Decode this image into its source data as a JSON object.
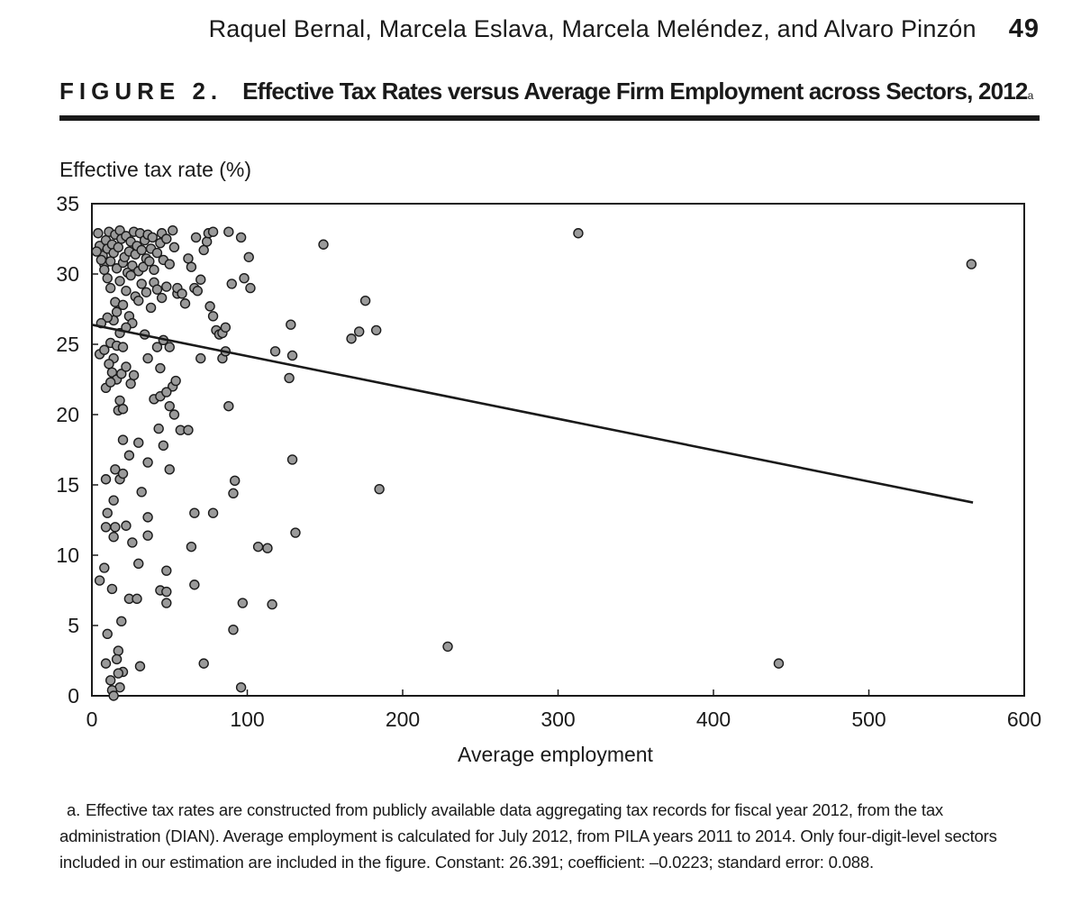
{
  "header": {
    "authors": "Raquel Bernal, Marcela Eslava, Marcela Meléndez, and Alvaro Pinzón",
    "page_number": "49"
  },
  "figure": {
    "label": "FIGURE 2.",
    "title": "Effective Tax Rates versus Average Firm Employment across Sectors, 2012",
    "title_note_marker": "a"
  },
  "footnote": {
    "marker": "a.",
    "text": "Effective tax rates are constructed from publicly available data aggregating tax records for fiscal year 2012, from the tax administration (DIAN). Average employment is calculated for July 2012, from PILA years 2011 to 2014. Only four-digit-level sectors included in our estimation are included in the figure. Constant: 26.391; coefficient: –0.0223; standard error: 0.088."
  },
  "colors": {
    "axis": "#1a1a1a",
    "marker_fill": "#9a9a9a",
    "marker_stroke": "#1a1a1a",
    "fit_line": "#1a1a1a"
  },
  "chart_data": {
    "type": "scatter",
    "title": "Effective Tax Rates versus Average Firm Employment across Sectors, 2012",
    "xlabel": "Average employment",
    "ylabel": "Effective tax rate (%)",
    "xlim": [
      0,
      600
    ],
    "ylim": [
      0,
      35
    ],
    "xticks": [
      0,
      100,
      200,
      300,
      400,
      500,
      600
    ],
    "yticks": [
      0,
      5,
      10,
      15,
      20,
      25,
      30,
      35
    ],
    "grid": false,
    "fit_line": {
      "constant": 26.391,
      "coefficient": -0.0223,
      "x_range": [
        0,
        567
      ]
    },
    "points": [
      [
        4,
        32.9
      ],
      [
        5,
        32.0
      ],
      [
        7,
        31.3
      ],
      [
        8,
        30.7
      ],
      [
        9,
        32.4
      ],
      [
        10,
        31.8
      ],
      [
        11,
        33.0
      ],
      [
        12,
        30.9
      ],
      [
        13,
        32.1
      ],
      [
        14,
        31.5
      ],
      [
        15,
        32.8
      ],
      [
        16,
        30.4
      ],
      [
        17,
        31.9
      ],
      [
        18,
        33.1
      ],
      [
        19,
        32.5
      ],
      [
        20,
        30.8
      ],
      [
        21,
        31.2
      ],
      [
        22,
        32.7
      ],
      [
        23,
        30.1
      ],
      [
        24,
        31.6
      ],
      [
        25,
        32.3
      ],
      [
        26,
        30.6
      ],
      [
        27,
        33.0
      ],
      [
        28,
        31.4
      ],
      [
        29,
        32.0
      ],
      [
        30,
        30.2
      ],
      [
        31,
        32.9
      ],
      [
        32,
        31.7
      ],
      [
        33,
        30.5
      ],
      [
        34,
        32.4
      ],
      [
        35,
        31.1
      ],
      [
        36,
        32.8
      ],
      [
        37,
        30.9
      ],
      [
        38,
        31.8
      ],
      [
        39,
        32.6
      ],
      [
        40,
        30.3
      ],
      [
        42,
        31.5
      ],
      [
        44,
        32.2
      ],
      [
        45,
        32.9
      ],
      [
        46,
        31.0
      ],
      [
        48,
        32.5
      ],
      [
        50,
        30.7
      ],
      [
        52,
        33.1
      ],
      [
        53,
        31.9
      ],
      [
        18,
        29.5
      ],
      [
        22,
        28.8
      ],
      [
        25,
        29.9
      ],
      [
        28,
        28.4
      ],
      [
        32,
        29.3
      ],
      [
        15,
        28.0
      ],
      [
        12,
        29.0
      ],
      [
        10,
        29.7
      ],
      [
        8,
        30.3
      ],
      [
        6,
        31.0
      ],
      [
        3,
        31.6
      ],
      [
        35,
        28.7
      ],
      [
        40,
        29.4
      ],
      [
        42,
        28.9
      ],
      [
        45,
        28.3
      ],
      [
        48,
        29.1
      ],
      [
        55,
        28.6
      ],
      [
        30,
        28.1
      ],
      [
        38,
        27.6
      ],
      [
        20,
        27.8
      ],
      [
        16,
        27.3
      ],
      [
        24,
        27.0
      ],
      [
        26,
        26.5
      ],
      [
        14,
        26.7
      ],
      [
        10,
        26.9
      ],
      [
        6,
        26.5
      ],
      [
        5,
        24.3
      ],
      [
        8,
        24.6
      ],
      [
        12,
        25.1
      ],
      [
        14,
        24.0
      ],
      [
        16,
        24.9
      ],
      [
        18,
        25.8
      ],
      [
        20,
        24.8
      ],
      [
        22,
        26.2
      ],
      [
        11,
        23.6
      ],
      [
        13,
        23.0
      ],
      [
        16,
        22.5
      ],
      [
        19,
        22.9
      ],
      [
        22,
        23.4
      ],
      [
        25,
        22.2
      ],
      [
        27,
        22.8
      ],
      [
        9,
        21.9
      ],
      [
        12,
        22.3
      ],
      [
        18,
        21.0
      ],
      [
        17,
        20.3
      ],
      [
        20,
        20.4
      ],
      [
        34,
        25.7
      ],
      [
        36,
        24.0
      ],
      [
        42,
        24.8
      ],
      [
        44,
        23.3
      ],
      [
        46,
        25.3
      ],
      [
        50,
        24.8
      ],
      [
        52,
        22.0
      ],
      [
        54,
        22.4
      ],
      [
        40,
        21.1
      ],
      [
        44,
        21.3
      ],
      [
        48,
        21.6
      ],
      [
        50,
        20.6
      ],
      [
        53,
        20.0
      ],
      [
        57,
        18.9
      ],
      [
        62,
        18.9
      ],
      [
        43,
        19.0
      ],
      [
        46,
        17.8
      ],
      [
        30,
        18.0
      ],
      [
        20,
        18.2
      ],
      [
        24,
        17.1
      ],
      [
        36,
        16.6
      ],
      [
        50,
        16.1
      ],
      [
        15,
        16.1
      ],
      [
        18,
        15.4
      ],
      [
        20,
        15.8
      ],
      [
        9,
        15.4
      ],
      [
        32,
        14.5
      ],
      [
        14,
        13.9
      ],
      [
        10,
        13.0
      ],
      [
        36,
        12.7
      ],
      [
        9,
        12.0
      ],
      [
        15,
        12.0
      ],
      [
        22,
        12.1
      ],
      [
        36,
        11.4
      ],
      [
        14,
        11.3
      ],
      [
        26,
        10.9
      ],
      [
        30,
        9.4
      ],
      [
        8,
        9.1
      ],
      [
        5,
        8.2
      ],
      [
        48,
        8.9
      ],
      [
        13,
        7.6
      ],
      [
        44,
        7.5
      ],
      [
        48,
        7.4
      ],
      [
        24,
        6.9
      ],
      [
        29,
        6.9
      ],
      [
        48,
        6.6
      ],
      [
        19,
        5.3
      ],
      [
        10,
        4.4
      ],
      [
        17,
        3.2
      ],
      [
        16,
        2.6
      ],
      [
        9,
        2.3
      ],
      [
        31,
        2.1
      ],
      [
        20,
        1.7
      ],
      [
        17,
        1.6
      ],
      [
        12,
        1.1
      ],
      [
        18,
        0.6
      ],
      [
        13,
        0.4
      ],
      [
        14,
        0.0
      ],
      [
        55,
        29.0
      ],
      [
        58,
        28.6
      ],
      [
        60,
        27.9
      ],
      [
        62,
        31.1
      ],
      [
        64,
        30.5
      ],
      [
        66,
        29.0
      ],
      [
        68,
        28.8
      ],
      [
        70,
        29.6
      ],
      [
        74,
        32.3
      ],
      [
        75,
        32.9
      ],
      [
        78,
        33.0
      ],
      [
        67,
        32.6
      ],
      [
        72,
        31.7
      ],
      [
        76,
        27.7
      ],
      [
        78,
        27.0
      ],
      [
        80,
        26.0
      ],
      [
        82,
        25.7
      ],
      [
        84,
        25.8
      ],
      [
        86,
        26.2
      ],
      [
        84,
        24.0
      ],
      [
        86,
        24.5
      ],
      [
        70,
        24.0
      ],
      [
        88,
        33.0
      ],
      [
        90,
        29.3
      ],
      [
        96,
        32.6
      ],
      [
        98,
        29.7
      ],
      [
        102,
        29.0
      ],
      [
        101,
        31.2
      ],
      [
        92,
        15.3
      ],
      [
        91,
        14.4
      ],
      [
        88,
        20.6
      ],
      [
        66,
        13.0
      ],
      [
        78,
        13.0
      ],
      [
        64,
        10.6
      ],
      [
        66,
        7.9
      ],
      [
        97,
        6.6
      ],
      [
        91,
        4.7
      ],
      [
        72,
        2.3
      ],
      [
        96,
        0.6
      ],
      [
        107,
        10.6
      ],
      [
        113,
        10.5
      ],
      [
        116,
        6.5
      ],
      [
        118,
        24.5
      ],
      [
        127,
        22.6
      ],
      [
        128,
        26.4
      ],
      [
        129,
        24.2
      ],
      [
        129,
        16.8
      ],
      [
        131,
        11.6
      ],
      [
        149,
        32.1
      ],
      [
        167,
        25.4
      ],
      [
        172,
        25.9
      ],
      [
        176,
        28.1
      ],
      [
        183,
        26.0
      ],
      [
        185,
        14.7
      ],
      [
        229,
        3.5
      ],
      [
        313,
        32.9
      ],
      [
        442,
        2.3
      ],
      [
        566,
        30.7
      ]
    ]
  }
}
